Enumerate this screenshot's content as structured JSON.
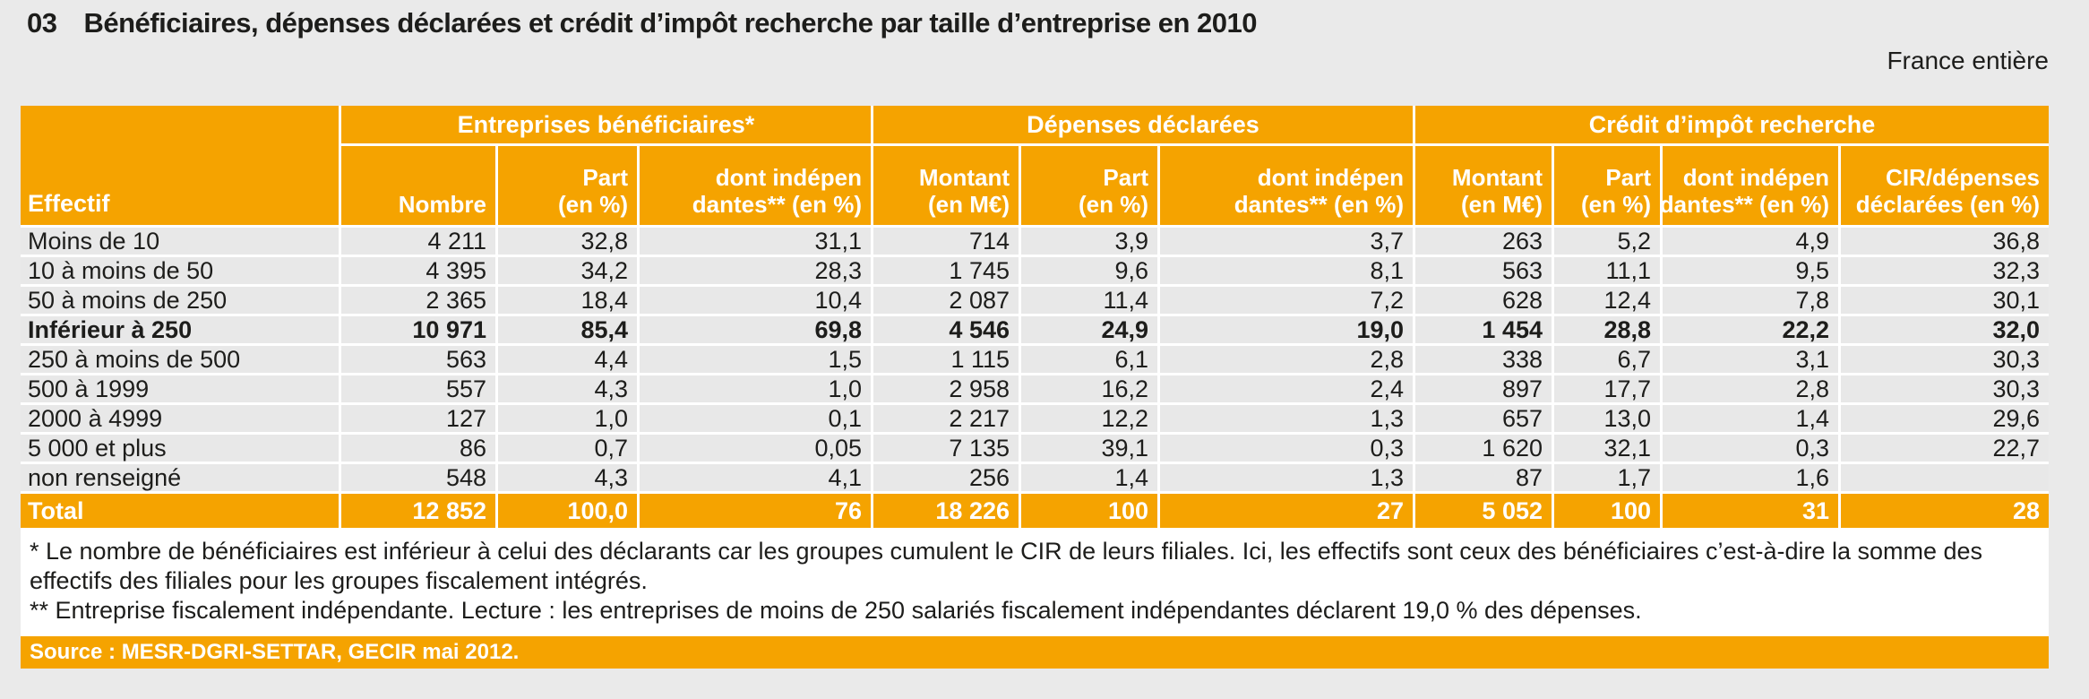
{
  "page": {
    "title_number": "03",
    "title": "Bénéficiaires, dépenses déclarées et crédit d’impôt recherche par taille d’entreprise en 2010",
    "region_label": "France entière"
  },
  "table": {
    "corner_header": "Effectif",
    "groups": [
      {
        "label": "Entreprises bénéficiaires*",
        "span": 3
      },
      {
        "label": "Dépenses déclarées",
        "span": 3
      },
      {
        "label": "Crédit d’impôt recherche",
        "span": 4
      }
    ],
    "columns": [
      {
        "line1": "",
        "line2": "Nombre"
      },
      {
        "line1": "Part",
        "line2": "(en %)"
      },
      {
        "line1": "dont indépen",
        "line2": "dantes** (en %)"
      },
      {
        "line1": "Montant",
        "line2": "(en M€)"
      },
      {
        "line1": "Part",
        "line2": "(en %)"
      },
      {
        "line1": "dont indépen",
        "line2": "dantes** (en %)"
      },
      {
        "line1": "Montant",
        "line2": "(en M€)"
      },
      {
        "line1": "Part",
        "line2": "(en %)"
      },
      {
        "line1": "dont indépen",
        "line2": "dantes** (en %)"
      },
      {
        "line1": "CIR/dépenses",
        "line2": "déclarées (en %)"
      }
    ],
    "rows": [
      {
        "label": "Moins de 10",
        "bold": false,
        "values": [
          "4 211",
          "32,8",
          "31,1",
          "714",
          "3,9",
          "3,7",
          "263",
          "5,2",
          "4,9",
          "36,8"
        ]
      },
      {
        "label": "10 à moins de 50",
        "bold": false,
        "values": [
          "4 395",
          "34,2",
          "28,3",
          "1 745",
          "9,6",
          "8,1",
          "563",
          "11,1",
          "9,5",
          "32,3"
        ]
      },
      {
        "label": "50 à moins de 250",
        "bold": false,
        "values": [
          "2 365",
          "18,4",
          "10,4",
          "2 087",
          "11,4",
          "7,2",
          "628",
          "12,4",
          "7,8",
          "30,1"
        ]
      },
      {
        "label": "Inférieur à 250",
        "bold": true,
        "values": [
          "10 971",
          "85,4",
          "69,8",
          "4 546",
          "24,9",
          "19,0",
          "1 454",
          "28,8",
          "22,2",
          "32,0"
        ]
      },
      {
        "label": "250 à moins de 500",
        "bold": false,
        "values": [
          "563",
          "4,4",
          "1,5",
          "1 115",
          "6,1",
          "2,8",
          "338",
          "6,7",
          "3,1",
          "30,3"
        ]
      },
      {
        "label": "500 à 1999",
        "bold": false,
        "values": [
          "557",
          "4,3",
          "1,0",
          "2 958",
          "16,2",
          "2,4",
          "897",
          "17,7",
          "2,8",
          "30,3"
        ]
      },
      {
        "label": "2000 à 4999",
        "bold": false,
        "values": [
          "127",
          "1,0",
          "0,1",
          "2 217",
          "12,2",
          "1,3",
          "657",
          "13,0",
          "1,4",
          "29,6"
        ]
      },
      {
        "label": "5 000 et plus",
        "bold": false,
        "values": [
          "86",
          "0,7",
          "0,05",
          "7 135",
          "39,1",
          "0,3",
          "1 620",
          "32,1",
          "0,3",
          "22,7"
        ]
      },
      {
        "label": "non renseigné",
        "bold": false,
        "values": [
          "548",
          "4,3",
          "4,1",
          "256",
          "1,4",
          "1,3",
          "87",
          "1,7",
          "1,6",
          ""
        ]
      }
    ],
    "total_row": {
      "label": "Total",
      "values": [
        "12 852",
        "100,0",
        "76",
        "18 226",
        "100",
        "27",
        "5 052",
        "100",
        "31",
        "28"
      ]
    }
  },
  "footnotes": [
    "* Le nombre de bénéficiaires est inférieur à celui des déclarants car les groupes cumulent le CIR de leurs filiales. Ici, les effectifs sont ceux des bénéficiaires c’est-à-dire la somme des effectifs des filiales pour les groupes fiscalement intégrés.",
    "** Entreprise fiscalement indépendante. Lecture : les entreprises de moins de 250 salariés fiscalement indépendantes déclarent 19,0 % des dépenses."
  ],
  "source": "Source : MESR-DGRI-SETTAR, GECIR mai 2012.",
  "colors": {
    "accent_orange": "#f5a300",
    "cell_gray": "#e8e8e8",
    "page_gray": "#eaeaea",
    "text_dark": "#1d1d1b"
  }
}
